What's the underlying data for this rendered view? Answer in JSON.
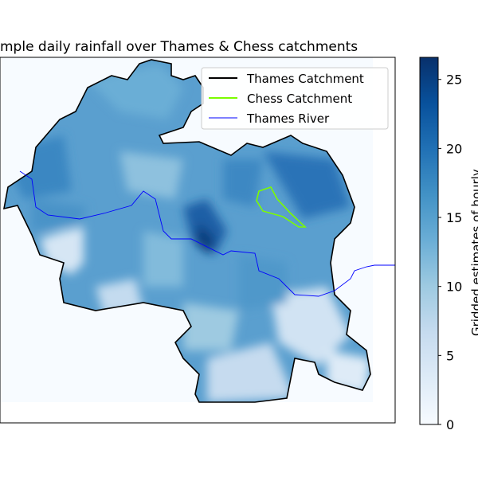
{
  "chart_data": {
    "type": "heatmap",
    "title": "mple daily rainfall over Thames & Chess catchments",
    "colorbar": {
      "label": "Gridded estimates of hourly",
      "ticks": [
        "0",
        "5",
        "10",
        "15",
        "20",
        "25"
      ],
      "tick_values": [
        0,
        5,
        10,
        15,
        20,
        25
      ],
      "range": [
        0,
        26.6
      ],
      "colormap": [
        "#f7fbff",
        "#deebf7",
        "#c6dbef",
        "#9ecae1",
        "#6baed6",
        "#4292c6",
        "#2171b5",
        "#08519c",
        "#08306b"
      ]
    },
    "legend": {
      "placement": "top-right",
      "entries": [
        {
          "label": "Thames Catchment",
          "color": "#000000"
        },
        {
          "label": "Chess Catchment",
          "color": "#7cfc00"
        },
        {
          "label": "Thames River",
          "color": "#0000ff"
        }
      ]
    }
  }
}
